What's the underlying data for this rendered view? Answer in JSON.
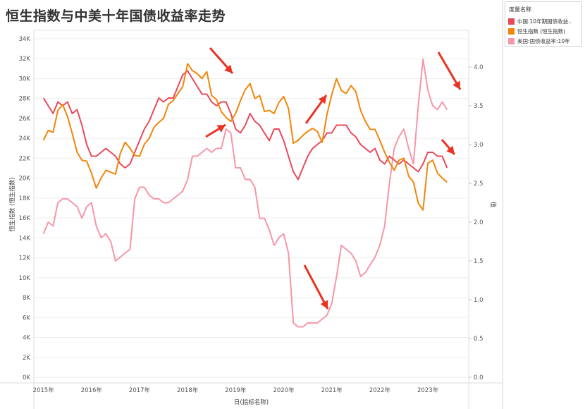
{
  "chart_data": {
    "type": "line",
    "title": "恒生指数与中美十年国债收益率走势",
    "xlabel": "日(指标名称)",
    "ylabel_left": "恒生指数 (恒生指数)",
    "ylabel_right": "值",
    "x_ticks": [
      "2015年",
      "2016年",
      "2017年",
      "2018年",
      "2019年",
      "2020年",
      "2021年",
      "2022年",
      "2023年"
    ],
    "y_left_ticks": [
      "0K",
      "2K",
      "4K",
      "6K",
      "8K",
      "10K",
      "12K",
      "14K",
      "16K",
      "18K",
      "20K",
      "22K",
      "24K",
      "26K",
      "28K",
      "30K",
      "32K",
      "34K"
    ],
    "y_right_ticks": [
      "0.0",
      "0.5",
      "1.0",
      "1.5",
      "2.0",
      "2.5",
      "3.0",
      "3.5",
      "4.0"
    ],
    "ylim_left": [
      0,
      34000
    ],
    "ylim_right": [
      0,
      4.3
    ],
    "xlim": [
      2014.8,
      2023.85
    ],
    "legend": {
      "title": "度量名称",
      "placement": "top-right",
      "items": [
        {
          "label": "中国:10年期国债收益..",
          "color": "#e8495a"
        },
        {
          "label": "恒生指数 (恒生指数)",
          "color": "#f2860a"
        },
        {
          "label": "美国:国债收益率:10年",
          "color": "#f597a8"
        }
      ]
    },
    "series": [
      {
        "name": "中国:10年期国债收益..",
        "axis": "right",
        "color": "#e8495a",
        "x": [
          2015.0,
          2015.1,
          2015.2,
          2015.3,
          2015.4,
          2015.5,
          2015.6,
          2015.7,
          2015.8,
          2015.9,
          2016.0,
          2016.1,
          2016.2,
          2016.3,
          2016.4,
          2016.5,
          2016.6,
          2016.7,
          2016.8,
          2016.9,
          2017.0,
          2017.1,
          2017.2,
          2017.3,
          2017.4,
          2017.5,
          2017.6,
          2017.7,
          2017.8,
          2017.9,
          2018.0,
          2018.1,
          2018.2,
          2018.3,
          2018.4,
          2018.5,
          2018.6,
          2018.7,
          2018.8,
          2018.9,
          2019.0,
          2019.1,
          2019.2,
          2019.3,
          2019.4,
          2019.5,
          2019.6,
          2019.7,
          2019.8,
          2019.9,
          2020.0,
          2020.1,
          2020.2,
          2020.3,
          2020.4,
          2020.5,
          2020.6,
          2020.7,
          2020.8,
          2020.9,
          2021.0,
          2021.1,
          2021.2,
          2021.3,
          2021.4,
          2021.5,
          2021.6,
          2021.7,
          2021.8,
          2021.9,
          2022.0,
          2022.1,
          2022.2,
          2022.3,
          2022.4,
          2022.5,
          2022.6,
          2022.7,
          2022.8,
          2022.9,
          2023.0,
          2023.1,
          2023.2,
          2023.3,
          2023.4
        ],
        "values": [
          3.6,
          3.5,
          3.4,
          3.55,
          3.5,
          3.55,
          3.4,
          3.45,
          3.25,
          3.0,
          2.85,
          2.85,
          2.9,
          2.95,
          2.9,
          2.85,
          2.75,
          2.7,
          2.75,
          2.9,
          3.05,
          3.2,
          3.3,
          3.45,
          3.6,
          3.55,
          3.6,
          3.6,
          3.75,
          3.9,
          3.95,
          3.85,
          3.75,
          3.65,
          3.65,
          3.55,
          3.5,
          3.55,
          3.55,
          3.4,
          3.2,
          3.15,
          3.25,
          3.4,
          3.3,
          3.25,
          3.15,
          3.05,
          3.2,
          3.2,
          3.05,
          2.85,
          2.65,
          2.55,
          2.7,
          2.85,
          2.95,
          3.0,
          3.05,
          3.15,
          3.15,
          3.25,
          3.25,
          3.25,
          3.15,
          3.1,
          3.0,
          2.95,
          2.9,
          2.95,
          2.8,
          2.75,
          2.85,
          2.8,
          2.75,
          2.8,
          2.75,
          2.7,
          2.65,
          2.75,
          2.9,
          2.9,
          2.85,
          2.85,
          2.7
        ]
      },
      {
        "name": "恒生指数 (恒生指数)",
        "axis": "left",
        "color": "#f2860a",
        "x": [
          2015.0,
          2015.1,
          2015.2,
          2015.3,
          2015.4,
          2015.5,
          2015.6,
          2015.7,
          2015.8,
          2015.9,
          2016.0,
          2016.1,
          2016.2,
          2016.3,
          2016.4,
          2016.5,
          2016.6,
          2016.7,
          2016.8,
          2016.9,
          2017.0,
          2017.1,
          2017.2,
          2017.3,
          2017.4,
          2017.5,
          2017.6,
          2017.7,
          2017.8,
          2017.9,
          2018.0,
          2018.1,
          2018.2,
          2018.3,
          2018.4,
          2018.5,
          2018.6,
          2018.7,
          2018.8,
          2018.9,
          2019.0,
          2019.1,
          2019.2,
          2019.3,
          2019.4,
          2019.5,
          2019.6,
          2019.7,
          2019.8,
          2019.9,
          2020.0,
          2020.1,
          2020.2,
          2020.3,
          2020.4,
          2020.5,
          2020.6,
          2020.7,
          2020.8,
          2020.9,
          2021.0,
          2021.1,
          2021.2,
          2021.3,
          2021.4,
          2021.5,
          2021.6,
          2021.7,
          2021.8,
          2021.9,
          2022.0,
          2022.1,
          2022.2,
          2022.3,
          2022.4,
          2022.5,
          2022.6,
          2022.7,
          2022.8,
          2022.9,
          2023.0,
          2023.1,
          2023.2,
          2023.3,
          2023.4
        ],
        "values": [
          23800,
          24800,
          24600,
          26800,
          27400,
          26200,
          24500,
          22600,
          21800,
          21700,
          20500,
          19000,
          20000,
          20800,
          20600,
          20400,
          22500,
          23600,
          23000,
          22300,
          22200,
          23400,
          24000,
          25100,
          25600,
          26000,
          27400,
          27800,
          28500,
          29200,
          31500,
          30800,
          30500,
          30000,
          30700,
          28300,
          27900,
          26700,
          26100,
          25700,
          26500,
          27800,
          28900,
          29500,
          28000,
          28300,
          26700,
          26800,
          26500,
          27600,
          28200,
          27000,
          23500,
          23800,
          24300,
          24700,
          25000,
          24700,
          23600,
          26400,
          28400,
          30000,
          28800,
          28500,
          29300,
          28700,
          26800,
          25700,
          24900,
          24900,
          23800,
          22600,
          21600,
          20800,
          21800,
          22000,
          20200,
          19600,
          17500,
          16800,
          21500,
          21800,
          20500,
          20000,
          19600
        ]
      },
      {
        "name": "美国:国债收益率:10年",
        "axis": "right",
        "color": "#f597a8",
        "x": [
          2015.0,
          2015.1,
          2015.2,
          2015.3,
          2015.4,
          2015.5,
          2015.6,
          2015.7,
          2015.8,
          2015.9,
          2016.0,
          2016.1,
          2016.2,
          2016.3,
          2016.4,
          2016.5,
          2016.6,
          2016.7,
          2016.8,
          2016.9,
          2017.0,
          2017.1,
          2017.2,
          2017.3,
          2017.4,
          2017.5,
          2017.6,
          2017.7,
          2017.8,
          2017.9,
          2018.0,
          2018.1,
          2018.2,
          2018.3,
          2018.4,
          2018.5,
          2018.6,
          2018.7,
          2018.8,
          2018.9,
          2019.0,
          2019.1,
          2019.2,
          2019.3,
          2019.4,
          2019.5,
          2019.6,
          2019.7,
          2019.8,
          2019.9,
          2020.0,
          2020.1,
          2020.2,
          2020.3,
          2020.4,
          2020.5,
          2020.6,
          2020.7,
          2020.8,
          2020.9,
          2021.0,
          2021.1,
          2021.2,
          2021.3,
          2021.4,
          2021.5,
          2021.6,
          2021.7,
          2021.8,
          2021.9,
          2022.0,
          2022.1,
          2022.2,
          2022.3,
          2022.4,
          2022.5,
          2022.6,
          2022.7,
          2022.8,
          2022.9,
          2023.0,
          2023.1,
          2023.2,
          2023.3,
          2023.4
        ],
        "values": [
          1.85,
          2.0,
          1.95,
          2.25,
          2.3,
          2.3,
          2.25,
          2.2,
          2.05,
          2.2,
          2.25,
          1.95,
          1.8,
          1.85,
          1.75,
          1.5,
          1.55,
          1.6,
          1.65,
          2.3,
          2.45,
          2.45,
          2.35,
          2.3,
          2.3,
          2.25,
          2.25,
          2.3,
          2.35,
          2.4,
          2.55,
          2.85,
          2.85,
          2.9,
          2.95,
          2.9,
          2.95,
          2.95,
          3.2,
          3.15,
          2.7,
          2.7,
          2.55,
          2.55,
          2.45,
          2.05,
          2.05,
          1.9,
          1.7,
          1.8,
          1.85,
          1.6,
          0.7,
          0.65,
          0.65,
          0.7,
          0.7,
          0.7,
          0.75,
          0.8,
          0.95,
          1.3,
          1.7,
          1.65,
          1.6,
          1.5,
          1.3,
          1.35,
          1.45,
          1.55,
          1.7,
          1.95,
          2.5,
          2.95,
          3.1,
          3.2,
          2.95,
          2.75,
          3.5,
          4.1,
          3.7,
          3.5,
          3.45,
          3.55,
          3.45
        ]
      }
    ],
    "annotations": "red arrows"
  }
}
